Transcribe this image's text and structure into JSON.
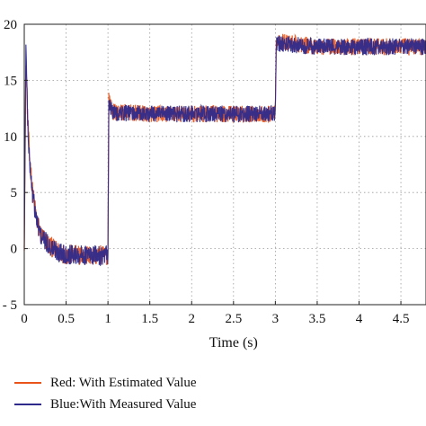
{
  "chart_data": {
    "type": "line",
    "xlabel": "Time (s)",
    "ylabel": "",
    "xlim": [
      0,
      4.8
    ],
    "ylim": [
      -5,
      20
    ],
    "xticks": [
      0,
      0.5,
      1,
      1.5,
      2,
      2.5,
      3,
      3.5,
      4,
      4.5
    ],
    "xtick_labels": [
      "0",
      "0.5",
      "1",
      "1.5",
      "2",
      "2.5",
      "3",
      "3.5",
      "4",
      "4.5"
    ],
    "yticks": [
      -5,
      0,
      5,
      10,
      15,
      20
    ],
    "ytick_labels": [
      "- 5",
      "0",
      "5",
      "10",
      "15",
      "20"
    ],
    "grid": true,
    "legend_position": "bottom",
    "series": [
      {
        "name": "Red: With Estimated Value",
        "color": "#e8541a",
        "x": [
          0,
          0.02,
          0.04,
          0.06,
          0.1,
          0.15,
          0.2,
          0.3,
          0.4,
          0.5,
          0.7,
          0.9,
          1.0,
          1.01,
          1.05,
          1.5,
          2.0,
          2.5,
          2.99,
          3.0,
          3.01,
          3.5,
          4.0,
          4.5,
          4.8
        ],
        "y": [
          0,
          16.5,
          12,
          8.5,
          5,
          2.5,
          1.2,
          0.3,
          -0.3,
          -0.5,
          -0.6,
          -0.6,
          -0.6,
          13.5,
          12.2,
          12.0,
          12.0,
          12.0,
          12.0,
          12.0,
          18.5,
          18.0,
          18.0,
          18.0,
          18.0
        ]
      },
      {
        "name": "Blue:With Measured Value",
        "color": "#2e2a8c",
        "x": [
          0,
          0.02,
          0.04,
          0.06,
          0.1,
          0.15,
          0.2,
          0.3,
          0.4,
          0.5,
          0.7,
          0.9,
          1.0,
          1.01,
          1.05,
          1.5,
          2.0,
          2.5,
          2.99,
          3.0,
          3.01,
          3.5,
          4.0,
          4.5,
          4.8
        ],
        "y": [
          0,
          18.5,
          11.5,
          8,
          4.8,
          2.4,
          1.1,
          0.2,
          -0.3,
          -0.5,
          -0.6,
          -0.6,
          -0.6,
          13.2,
          12.1,
          12.0,
          12.0,
          12.0,
          12.0,
          12.0,
          18.3,
          18.0,
          18.0,
          18.0,
          18.0
        ]
      }
    ]
  }
}
